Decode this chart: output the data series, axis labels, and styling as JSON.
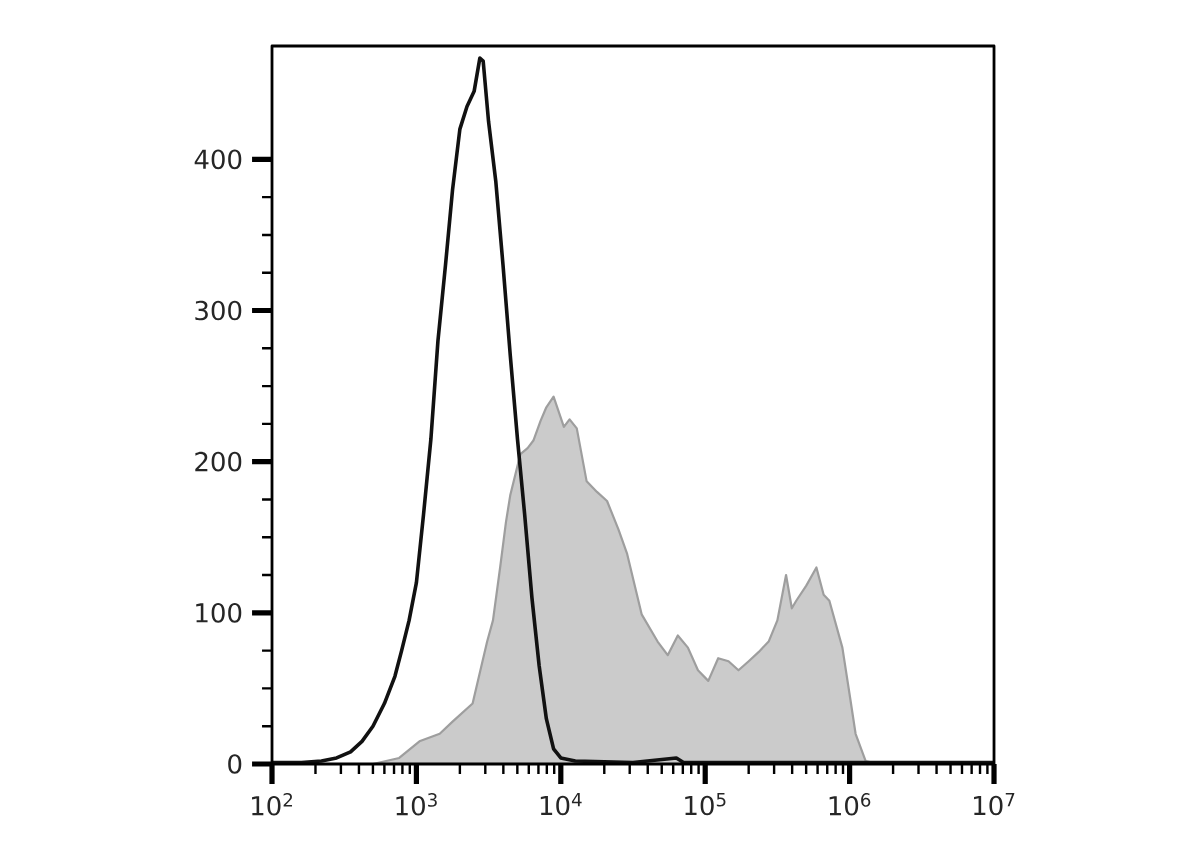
{
  "chart_data": {
    "type": "line",
    "log": "x",
    "marker": "none",
    "xlim": [
      100,
      10000000
    ],
    "ylim": [
      0,
      475
    ],
    "xticks": [
      {
        "value": 100,
        "label": "10$^{2}$"
      },
      {
        "value": 1000,
        "label": "10$^{3}$"
      },
      {
        "value": 10000,
        "label": "10$^{4}$"
      },
      {
        "value": 100000,
        "label": "10$^{5}$"
      },
      {
        "value": 1000000,
        "label": "10$^{6}$"
      },
      {
        "value": 10000000,
        "label": "10$^{7}$"
      }
    ],
    "yticks": [
      0,
      100,
      200,
      300,
      400
    ],
    "series": [
      {
        "type": "area",
        "color": "#cbcbcb",
        "x": [
          500,
          760,
          1050,
          1450,
          1780,
          2450,
          3090,
          3390,
          3800,
          4170,
          4470,
          5250,
          5890,
          6460,
          7240,
          7940,
          8910,
          10500,
          11500,
          12900,
          15100,
          17800,
          20900,
          25100,
          28800,
          36300,
          46800,
          55000,
          64600,
          75900,
          89100,
          105000,
          123000,
          145000,
          170000,
          200000,
          234000,
          275000,
          316000,
          363000,
          398000,
          427000,
          501000,
          589000,
          661000,
          724000,
          891000,
          1000000,
          1100000,
          1290000,
          1580000,
          10000000
        ],
        "values": [
          0,
          4,
          15,
          20,
          28,
          40,
          81,
          95,
          130,
          160,
          178,
          205,
          209,
          214,
          227,
          236,
          243,
          223,
          228,
          222,
          187,
          180,
          174,
          155,
          139,
          99,
          81,
          72,
          85,
          77,
          62,
          55,
          70,
          68,
          62,
          68,
          74,
          81,
          95,
          125,
          103,
          108,
          118,
          130,
          112,
          108,
          77,
          46,
          20,
          2,
          0,
          0
        ]
      },
      {
        "color": "#111111",
        "x": [
          100,
          160,
          220,
          280,
          350,
          420,
          500,
          600,
          710,
          790,
          890,
          1000,
          1120,
          1260,
          1410,
          1590,
          1780,
          2000,
          2240,
          2510,
          2750,
          2900,
          3160,
          3550,
          3980,
          4470,
          5010,
          5620,
          6310,
          7080,
          7940,
          8910,
          10000,
          12600,
          31600,
          63100,
          70800,
          316000,
          1000000,
          10000000
        ],
        "values": [
          1,
          1,
          2,
          4,
          8,
          15,
          25,
          40,
          58,
          75,
          95,
          120,
          165,
          215,
          280,
          330,
          380,
          420,
          435,
          445,
          467,
          465,
          425,
          385,
          330,
          270,
          215,
          165,
          110,
          65,
          30,
          10,
          4,
          2,
          1,
          4,
          1,
          1,
          1,
          1
        ]
      }
    ]
  }
}
